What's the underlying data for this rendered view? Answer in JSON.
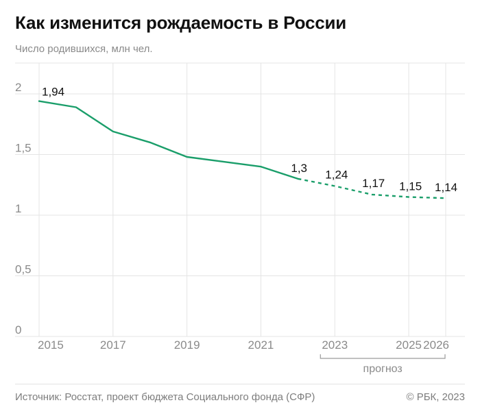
{
  "header": {
    "title": "Как изменится рождаемость в России",
    "subtitle": "Число родившихся, млн чел."
  },
  "footer": {
    "source": "Источник: Росстат, проект бюджета Социального фонда (СФР)",
    "copyright": "© РБК, 2023"
  },
  "colors": {
    "line": "#1a9e6a",
    "grid": "#e4e4e4",
    "tick_label": "#8a8a8a",
    "data_label": "#111111"
  },
  "chart_data": {
    "type": "line",
    "title": "Как изменится рождаемость в России",
    "ylabel": "Число родившихся, млн чел.",
    "xlim": [
      2015,
      2026
    ],
    "ylim": [
      0,
      2
    ],
    "grid": true,
    "y_ticks": [
      0,
      0.5,
      1,
      1.5,
      2
    ],
    "y_tick_labels": [
      "0",
      "0,5",
      "1",
      "1,5",
      "2"
    ],
    "x_ticks": [
      2015,
      2017,
      2019,
      2021,
      2023,
      2025,
      2026
    ],
    "x_tick_labels": [
      "2015",
      "2017",
      "2019",
      "2021",
      "2023",
      "2025",
      "2026"
    ],
    "series": [
      {
        "style": "solid",
        "x": [
          2015,
          2016,
          2017,
          2018,
          2019,
          2020,
          2021,
          2022
        ],
        "y": [
          1.94,
          1.89,
          1.69,
          1.6,
          1.48,
          1.44,
          1.4,
          1.3
        ]
      },
      {
        "style": "dashed",
        "x": [
          2022,
          2023,
          2024,
          2025,
          2026
        ],
        "y": [
          1.3,
          1.24,
          1.17,
          1.15,
          1.14
        ]
      }
    ],
    "data_labels": [
      {
        "x": 2015,
        "y": 1.94,
        "text": "1,94"
      },
      {
        "x": 2022,
        "y": 1.3,
        "text": "1,3"
      },
      {
        "x": 2023,
        "y": 1.24,
        "text": "1,24"
      },
      {
        "x": 2024,
        "y": 1.17,
        "text": "1,17"
      },
      {
        "x": 2025,
        "y": 1.15,
        "text": "1,15"
      },
      {
        "x": 2026,
        "y": 1.14,
        "text": "1,14"
      }
    ],
    "annotation": {
      "text": "прогноз",
      "x_from": 2023,
      "x_to": 2026
    }
  }
}
